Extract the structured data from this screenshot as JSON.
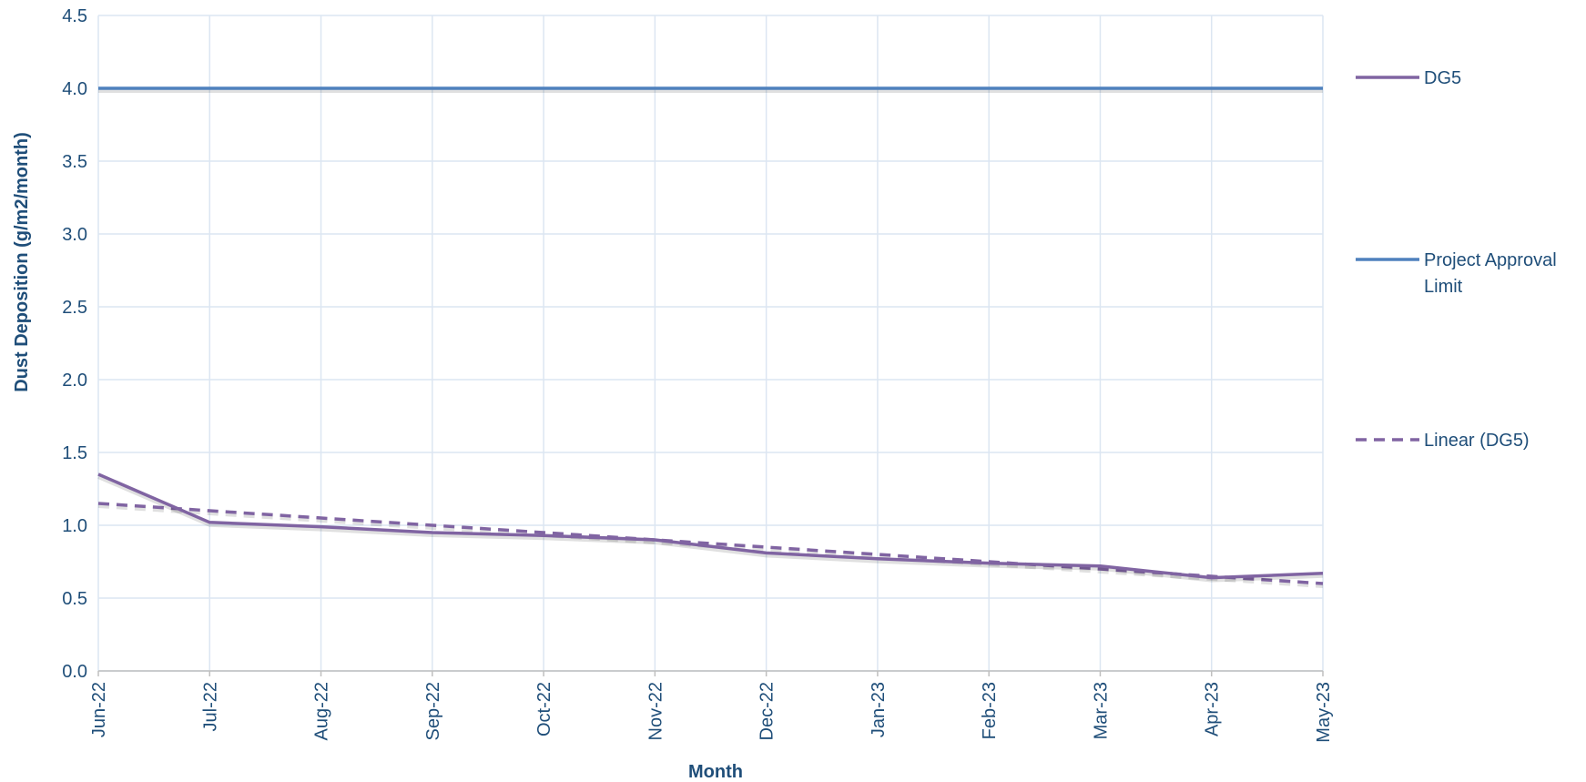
{
  "chart_data": {
    "type": "line",
    "title": "",
    "xlabel": "Month",
    "ylabel": "Dust Deposition (g/m2/month)",
    "categories": [
      "Jun-22",
      "Jul-22",
      "Aug-22",
      "Sep-22",
      "Oct-22",
      "Nov-22",
      "Dec-22",
      "Jan-23",
      "Feb-23",
      "Mar-23",
      "Apr-23",
      "May-23"
    ],
    "ylim": [
      0,
      4.5
    ],
    "yticks": [
      "0.0",
      "0.5",
      "1.0",
      "1.5",
      "2.0",
      "2.5",
      "3.0",
      "3.5",
      "4.0",
      "4.5"
    ],
    "grid": true,
    "legend_position": "right",
    "series": [
      {
        "name": "DG5",
        "style": "solid",
        "color": "#8064a2",
        "values": [
          1.35,
          1.02,
          0.99,
          0.95,
          0.93,
          0.9,
          0.81,
          0.77,
          0.74,
          0.72,
          0.64,
          0.67
        ]
      },
      {
        "name": "Project Approval Limit",
        "style": "solid",
        "color": "#4f81bd",
        "values": [
          4.0,
          4.0,
          4.0,
          4.0,
          4.0,
          4.0,
          4.0,
          4.0,
          4.0,
          4.0,
          4.0,
          4.0
        ]
      },
      {
        "name": "Linear (DG5)",
        "style": "dashed",
        "color": "#8064a2",
        "values": [
          1.15,
          1.1,
          1.05,
          1.0,
          0.95,
          0.9,
          0.85,
          0.8,
          0.75,
          0.7,
          0.65,
          0.6
        ]
      }
    ],
    "legend": {
      "items": [
        {
          "series": 0,
          "lines": [
            "DG5"
          ]
        },
        {
          "series": 1,
          "lines": [
            "Project Approval",
            "Limit"
          ]
        },
        {
          "series": 2,
          "lines": [
            "Linear (DG5)"
          ]
        }
      ]
    }
  }
}
